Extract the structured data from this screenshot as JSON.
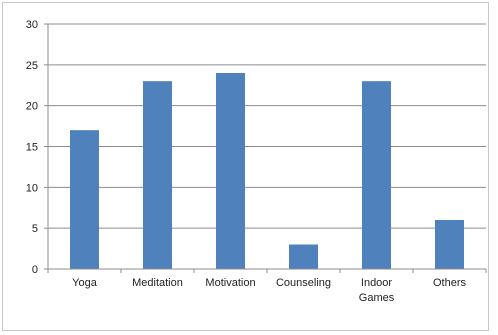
{
  "chart_data": {
    "type": "bar",
    "categories": [
      "Yoga",
      "Meditation",
      "Motivation",
      "Counseling",
      "Indoor Games",
      "Others"
    ],
    "category_lines": [
      [
        "Yoga"
      ],
      [
        "Meditation"
      ],
      [
        "Motivation"
      ],
      [
        "Counseling"
      ],
      [
        "Indoor",
        "Games"
      ],
      [
        "Others"
      ]
    ],
    "values": [
      17,
      23,
      24,
      3,
      23,
      6
    ],
    "ylim": [
      0,
      30
    ],
    "yticks": [
      0,
      5,
      10,
      15,
      20,
      25,
      30
    ],
    "grid": true,
    "bar_color": "#4f81bd",
    "grid_color": "#8c8c8c",
    "axis_color": "#8c8c8c"
  }
}
